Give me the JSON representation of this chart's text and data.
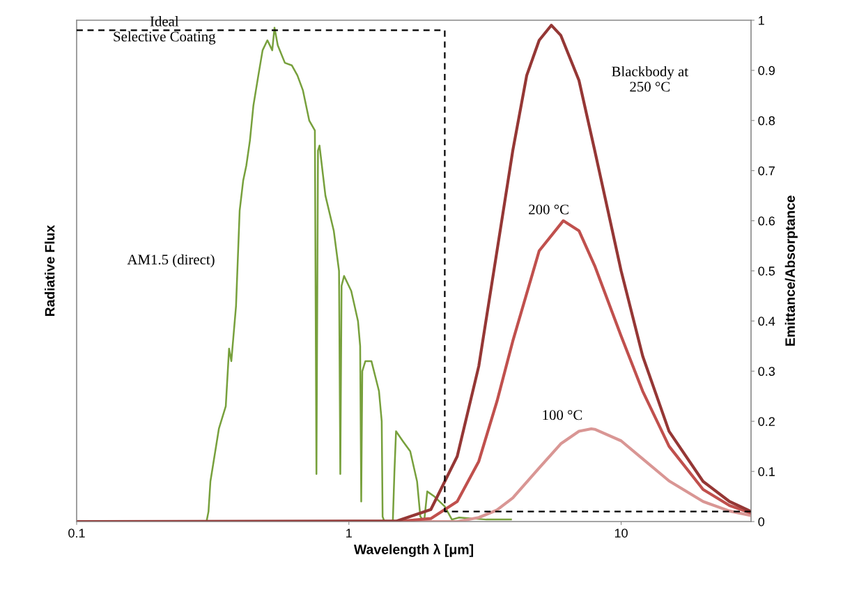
{
  "chart_data": {
    "type": "line",
    "xlabel": "Wavelength λ [μm]",
    "ylabel": "Radiative Flux",
    "y2label": "Emittance/Absorptance",
    "log": "x",
    "xlim": [
      0.1,
      30
    ],
    "xticks": [
      0.1,
      1,
      10
    ],
    "y2lim": [
      0,
      1
    ],
    "y2ticks": [
      0,
      0.1,
      0.2,
      0.3,
      0.4,
      0.5,
      0.6,
      0.7,
      0.8,
      0.9,
      1
    ],
    "grid": false,
    "legend": false,
    "marker": "none",
    "series": [
      {
        "name": "AM1.5 (direct)",
        "color": "#77a03c",
        "axis": "y2",
        "line_style": "solid",
        "x": [
          0.1,
          0.3,
          0.305,
          0.31,
          0.333,
          0.353,
          0.363,
          0.37,
          0.385,
          0.397,
          0.409,
          0.42,
          0.433,
          0.446,
          0.465,
          0.482,
          0.502,
          0.523,
          0.533,
          0.548,
          0.582,
          0.617,
          0.647,
          0.678,
          0.715,
          0.75,
          0.76,
          0.77,
          0.78,
          0.82,
          0.88,
          0.92,
          0.93,
          0.94,
          0.96,
          1.02,
          1.08,
          1.1,
          1.11,
          1.12,
          1.15,
          1.21,
          1.29,
          1.32,
          1.33,
          1.35,
          1.45,
          1.47,
          1.49,
          1.58,
          1.68,
          1.78,
          1.83,
          1.89,
          1.94,
          2.06,
          2.25,
          2.39,
          2.54,
          3.2,
          3.94
        ],
        "values": [
          0,
          0,
          0.02,
          0.08,
          0.185,
          0.23,
          0.345,
          0.32,
          0.43,
          0.62,
          0.68,
          0.71,
          0.76,
          0.83,
          0.89,
          0.94,
          0.96,
          0.94,
          0.985,
          0.95,
          0.915,
          0.91,
          0.89,
          0.86,
          0.8,
          0.78,
          0.095,
          0.74,
          0.75,
          0.65,
          0.58,
          0.5,
          0.095,
          0.47,
          0.49,
          0.46,
          0.4,
          0.35,
          0.04,
          0.3,
          0.32,
          0.32,
          0.26,
          0.2,
          0.01,
          0,
          0,
          0.1,
          0.18,
          0.16,
          0.14,
          0.08,
          0.01,
          0,
          0.06,
          0.05,
          0.03,
          0.004,
          0.008,
          0.004,
          0.004
        ]
      },
      {
        "name": "Ideal\nSelective Coating",
        "color": "#000000",
        "axis": "y2",
        "line_style": "dashed",
        "x": [
          0.1,
          2.25,
          2.25,
          30
        ],
        "values": [
          0.98,
          0.98,
          0.02,
          0.02
        ]
      },
      {
        "name": "100 °C",
        "color": "#d99694",
        "axis": "y2",
        "line_style": "solid",
        "x": [
          0.1,
          2.5,
          3,
          3.5,
          4,
          5,
          6,
          7,
          7.77,
          8,
          10,
          12,
          15,
          20,
          25,
          30
        ],
        "values": [
          0,
          0,
          0.008,
          0.023,
          0.047,
          0.107,
          0.155,
          0.18,
          0.185,
          0.184,
          0.161,
          0.125,
          0.081,
          0.04,
          0.021,
          0.012
        ]
      },
      {
        "name": "200 °C",
        "color": "#c0504d",
        "axis": "y2",
        "line_style": "solid",
        "x": [
          0.1,
          1.5,
          2,
          2.5,
          3,
          3.5,
          4,
          5,
          6.13,
          7,
          8,
          10,
          12,
          15,
          20,
          25,
          30
        ],
        "values": [
          0,
          0,
          0.006,
          0.04,
          0.12,
          0.24,
          0.36,
          0.54,
          0.6,
          0.58,
          0.51,
          0.37,
          0.26,
          0.15,
          0.064,
          0.032,
          0.017
        ]
      },
      {
        "name": "Blackbody at\n250 °C",
        "color": "#953735",
        "axis": "y2",
        "line_style": "solid",
        "x": [
          0.1,
          1.5,
          2,
          2.5,
          3,
          3.5,
          4,
          4.5,
          5,
          5.54,
          6,
          7,
          8,
          10,
          12,
          15,
          20,
          25,
          30
        ],
        "values": [
          0,
          0.001,
          0.024,
          0.13,
          0.31,
          0.54,
          0.74,
          0.89,
          0.96,
          0.99,
          0.97,
          0.88,
          0.74,
          0.5,
          0.33,
          0.18,
          0.08,
          0.04,
          0.02
        ]
      }
    ]
  }
}
